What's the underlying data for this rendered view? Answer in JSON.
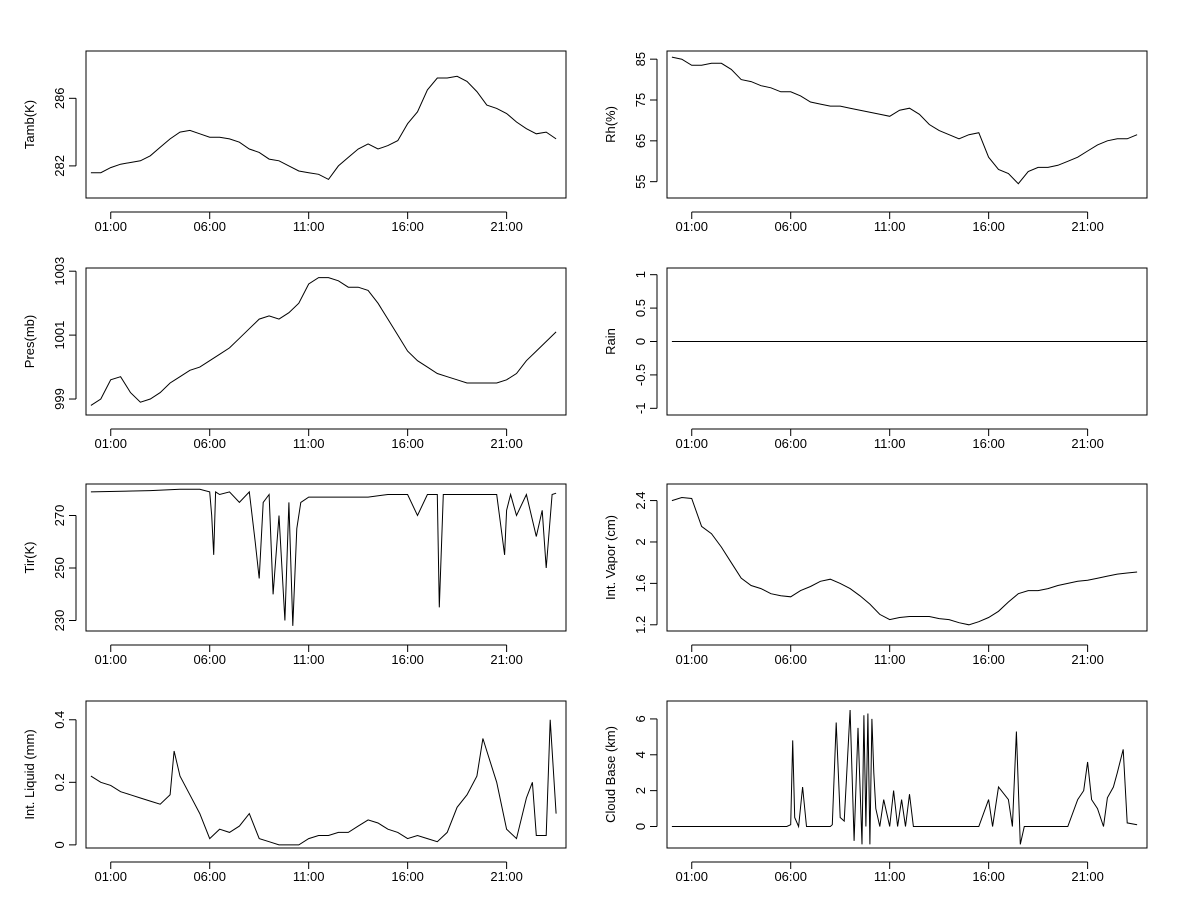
{
  "x_tick_labels": [
    "01:00",
    "06:00",
    "11:00",
    "16:00",
    "21:00"
  ],
  "x_tick_hours": [
    1,
    6,
    11,
    16,
    21
  ],
  "chart_data": [
    {
      "type": "line",
      "name": "tamb",
      "ylabel": "Tamb(K)",
      "ylim": [
        280.1,
        288.8
      ],
      "yticks": [
        282,
        286
      ],
      "x_hours": [
        0,
        0.5,
        1,
        1.5,
        2,
        2.5,
        3,
        3.5,
        4,
        4.5,
        5,
        5.5,
        6,
        6.5,
        7,
        7.5,
        8,
        8.5,
        9,
        9.5,
        10,
        10.5,
        11,
        11.5,
        12,
        12.5,
        13,
        13.5,
        14,
        14.5,
        15,
        15.5,
        16,
        16.5,
        17,
        17.5,
        18,
        18.5,
        19,
        19.5,
        20,
        20.5,
        21,
        21.5,
        22,
        22.5,
        23,
        23.5
      ],
      "values": [
        281.6,
        281.6,
        281.9,
        282.1,
        282.2,
        282.3,
        282.6,
        283.1,
        283.6,
        284.0,
        284.1,
        283.9,
        283.7,
        283.7,
        283.6,
        283.4,
        283.0,
        282.8,
        282.4,
        282.3,
        282.0,
        281.7,
        281.6,
        281.5,
        281.2,
        282.0,
        282.5,
        283.0,
        283.3,
        283.0,
        283.2,
        283.5,
        284.5,
        285.2,
        286.5,
        287.2,
        287.2,
        287.3,
        287.0,
        286.4,
        285.6,
        285.4,
        285.1,
        284.6,
        284.2,
        283.9,
        284.0,
        283.6
      ]
    },
    {
      "type": "line",
      "name": "rh",
      "ylabel": "Rh(%)",
      "ylim": [
        51,
        87
      ],
      "yticks": [
        55,
        65,
        75,
        85
      ],
      "x_hours": [
        0,
        0.5,
        1,
        1.5,
        2,
        2.5,
        3,
        3.5,
        4,
        4.5,
        5,
        5.5,
        6,
        6.5,
        7,
        7.5,
        8,
        8.5,
        9,
        9.5,
        10,
        10.5,
        11,
        11.5,
        12,
        12.5,
        13,
        13.5,
        14,
        14.5,
        15,
        15.5,
        16,
        16.5,
        17,
        17.5,
        18,
        18.5,
        19,
        19.5,
        20,
        20.5,
        21,
        21.5,
        22,
        22.5,
        23,
        23.5
      ],
      "values": [
        85.5,
        85.0,
        83.5,
        83.5,
        84.0,
        84.0,
        82.5,
        80.0,
        79.5,
        78.5,
        78.0,
        77.0,
        77.0,
        76.0,
        74.5,
        74.0,
        73.5,
        73.5,
        73.0,
        72.5,
        72.0,
        71.5,
        71.0,
        72.5,
        73.0,
        71.5,
        69.0,
        67.5,
        66.5,
        65.5,
        66.5,
        67.0,
        61.0,
        58.0,
        57.0,
        54.5,
        57.5,
        58.5,
        58.5,
        59.0,
        60.0,
        61.0,
        62.5,
        64.0,
        65.0,
        65.5,
        65.5,
        66.5
      ]
    },
    {
      "type": "line",
      "name": "pres",
      "ylabel": "Pres(mb)",
      "ylim": [
        998.5,
        1003.1
      ],
      "yticks": [
        999,
        1001,
        1003
      ],
      "x_hours": [
        0,
        0.5,
        1,
        1.5,
        2,
        2.5,
        3,
        3.5,
        4,
        4.5,
        5,
        5.5,
        6,
        6.5,
        7,
        7.5,
        8,
        8.5,
        9,
        9.5,
        10,
        10.5,
        11,
        11.5,
        12,
        12.5,
        13,
        13.5,
        14,
        14.5,
        15,
        15.5,
        16,
        16.5,
        17,
        17.5,
        18,
        18.5,
        19,
        19.5,
        20,
        20.5,
        21,
        21.5,
        22,
        22.5,
        23,
        23.5
      ],
      "values": [
        998.8,
        999.0,
        999.6,
        999.7,
        999.2,
        998.9,
        999.0,
        999.2,
        999.5,
        999.7,
        999.9,
        1000.0,
        1000.2,
        1000.4,
        1000.6,
        1000.9,
        1001.2,
        1001.5,
        1001.6,
        1001.5,
        1001.7,
        1002.0,
        1002.6,
        1002.8,
        1002.8,
        1002.7,
        1002.5,
        1002.5,
        1002.4,
        1002.0,
        1001.5,
        1001.0,
        1000.5,
        1000.2,
        1000.0,
        999.8,
        999.7,
        999.6,
        999.5,
        999.5,
        999.5,
        999.5,
        999.6,
        999.8,
        1000.2,
        1000.5,
        1000.8,
        1001.1
      ]
    },
    {
      "type": "line",
      "name": "rain",
      "ylabel": "Rain",
      "ylim": [
        -1.1,
        1.1
      ],
      "yticks": [
        -1.0,
        -0.5,
        0.0,
        0.5,
        1.0
      ],
      "x_hours": [
        0,
        24
      ],
      "values": [
        0.0,
        0.0
      ]
    },
    {
      "type": "line",
      "name": "tir",
      "ylabel": "Tir(K)",
      "ylim": [
        226,
        282
      ],
      "yticks": [
        230,
        250,
        270
      ],
      "x_hours": [
        0,
        3,
        4.5,
        5.5,
        6,
        6.1,
        6.2,
        6.3,
        6.5,
        7,
        7.5,
        8,
        8.3,
        8.5,
        8.7,
        9,
        9.2,
        9.5,
        9.8,
        10,
        10.2,
        10.4,
        10.6,
        11,
        11.5,
        12,
        13,
        14,
        15,
        15.5,
        16,
        16.5,
        17,
        17.5,
        17.6,
        17.8,
        18,
        19,
        20,
        20.5,
        20.9,
        21,
        21.2,
        21.5,
        22,
        22.5,
        22.8,
        23,
        23.3,
        23.5
      ],
      "values": [
        279.0,
        279.5,
        280.0,
        280.0,
        279.0,
        270.0,
        255.0,
        279.0,
        278.0,
        279.0,
        275.0,
        279.0,
        260.0,
        246.0,
        275.0,
        278.0,
        240.0,
        270.0,
        230.0,
        275.0,
        228.0,
        265.0,
        275.0,
        277.0,
        277.0,
        277.0,
        277.0,
        277.0,
        278.0,
        278.0,
        278.0,
        270.0,
        278.0,
        278.0,
        235.0,
        278.0,
        278.0,
        278.0,
        278.0,
        278.0,
        255.0,
        272.0,
        278.0,
        270.0,
        278.0,
        262.0,
        272.0,
        250.0,
        278.0,
        278.5
      ]
    },
    {
      "type": "line",
      "name": "vapor",
      "ylabel": "Int. Vapor (cm)",
      "ylim": [
        1.14,
        2.56
      ],
      "yticks": [
        1.2,
        1.6,
        2.0,
        2.4
      ],
      "x_hours": [
        0,
        0.5,
        1,
        1.5,
        2,
        2.5,
        3,
        3.5,
        4,
        4.5,
        5,
        5.5,
        6,
        6.5,
        7,
        7.5,
        8,
        8.5,
        9,
        9.5,
        10,
        10.5,
        11,
        11.5,
        12,
        12.5,
        13,
        13.5,
        14,
        14.5,
        15,
        15.5,
        16,
        16.5,
        17,
        17.5,
        18,
        18.5,
        19,
        19.5,
        20,
        20.5,
        21,
        21.5,
        22,
        22.5,
        23,
        23.5
      ],
      "values": [
        2.4,
        2.43,
        2.42,
        2.15,
        2.08,
        1.95,
        1.8,
        1.65,
        1.58,
        1.55,
        1.5,
        1.48,
        1.47,
        1.53,
        1.57,
        1.62,
        1.64,
        1.6,
        1.55,
        1.48,
        1.4,
        1.3,
        1.25,
        1.27,
        1.28,
        1.28,
        1.28,
        1.26,
        1.25,
        1.22,
        1.2,
        1.23,
        1.27,
        1.33,
        1.42,
        1.5,
        1.53,
        1.53,
        1.55,
        1.58,
        1.6,
        1.62,
        1.63,
        1.65,
        1.67,
        1.69,
        1.7,
        1.71
      ]
    },
    {
      "type": "line",
      "name": "liquid",
      "ylabel": "Int. Liquid (mm)",
      "ylim": [
        -0.01,
        0.46
      ],
      "yticks": [
        0.0,
        0.2,
        0.4
      ],
      "x_hours": [
        0,
        0.5,
        1,
        1.5,
        2,
        2.5,
        3,
        3.5,
        4,
        4.2,
        4.5,
        5,
        5.5,
        6,
        6.5,
        7,
        7.5,
        8,
        8.5,
        9,
        9.5,
        10,
        10.5,
        11,
        11.5,
        12,
        12.5,
        13,
        13.5,
        14,
        14.5,
        15,
        15.5,
        16,
        16.5,
        17,
        17.5,
        18,
        18.5,
        19,
        19.5,
        19.8,
        20,
        20.5,
        21,
        21.5,
        22,
        22.3,
        22.5,
        23,
        23.2,
        23.5
      ],
      "values": [
        0.22,
        0.2,
        0.19,
        0.17,
        0.16,
        0.15,
        0.14,
        0.13,
        0.16,
        0.3,
        0.22,
        0.16,
        0.1,
        0.02,
        0.05,
        0.04,
        0.06,
        0.1,
        0.02,
        0.01,
        0.0,
        0.0,
        0.0,
        0.02,
        0.03,
        0.03,
        0.04,
        0.04,
        0.06,
        0.08,
        0.07,
        0.05,
        0.04,
        0.02,
        0.03,
        0.02,
        0.01,
        0.04,
        0.12,
        0.16,
        0.22,
        0.34,
        0.3,
        0.2,
        0.05,
        0.02,
        0.15,
        0.2,
        0.03,
        0.03,
        0.4,
        0.1
      ]
    },
    {
      "type": "line",
      "name": "cloudbase",
      "ylabel": "Cloud Base (km)",
      "ylim": [
        -1.2,
        7.0
      ],
      "yticks": [
        0,
        2,
        4,
        6
      ],
      "x_hours": [
        0,
        5.8,
        6.0,
        6.1,
        6.2,
        6.4,
        6.6,
        6.8,
        7.0,
        8.0,
        8.1,
        8.3,
        8.5,
        8.7,
        9.0,
        9.2,
        9.4,
        9.6,
        9.7,
        9.8,
        9.9,
        10.0,
        10.1,
        10.2,
        10.3,
        10.5,
        10.7,
        11.0,
        11.2,
        11.4,
        11.6,
        11.8,
        12.0,
        12.2,
        12.5,
        15.5,
        16.0,
        16.2,
        16.5,
        17.0,
        17.2,
        17.4,
        17.6,
        17.8,
        18.0,
        20.0,
        20.5,
        20.8,
        21.0,
        21.2,
        21.5,
        21.8,
        22.0,
        22.3,
        22.5,
        22.8,
        23.0,
        23.5
      ],
      "values": [
        0.0,
        0.0,
        0.1,
        4.8,
        0.5,
        0.0,
        2.2,
        0.0,
        0.0,
        0.0,
        0.1,
        5.8,
        0.5,
        0.3,
        6.5,
        -0.8,
        5.5,
        -1.0,
        6.2,
        0.0,
        6.3,
        -1.0,
        6.0,
        3.0,
        1.0,
        0.0,
        1.5,
        0.0,
        2.0,
        0.0,
        1.5,
        0.0,
        1.8,
        0.0,
        0.0,
        0.0,
        1.5,
        0.0,
        2.2,
        1.5,
        0.0,
        5.3,
        -1.0,
        0.0,
        0.0,
        0.0,
        1.5,
        2.0,
        3.6,
        1.5,
        1.0,
        0.0,
        1.6,
        2.2,
        3.0,
        4.3,
        0.2,
        0.1
      ]
    }
  ]
}
